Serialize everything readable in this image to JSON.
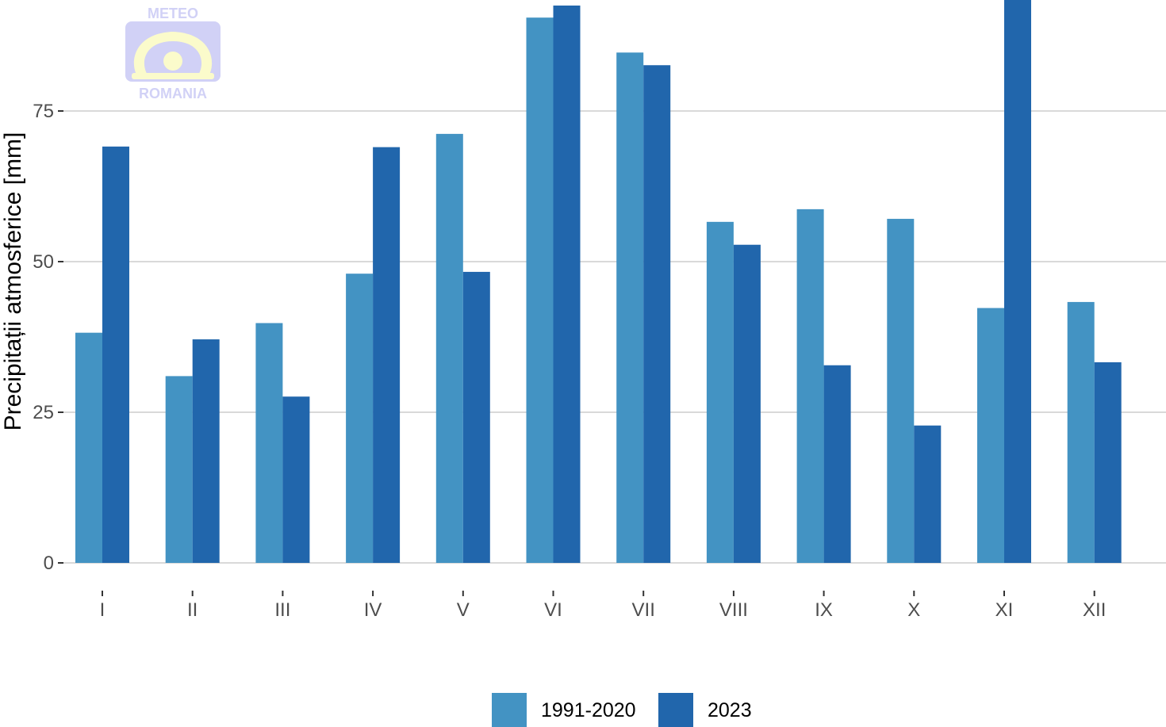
{
  "chart_data": {
    "type": "bar",
    "title": "",
    "xlabel": "",
    "ylabel": "Precipitații atmosferice [mm]",
    "categories": [
      "I",
      "II",
      "III",
      "IV",
      "V",
      "VI",
      "VII",
      "VIII",
      "IX",
      "X",
      "XI",
      "XII"
    ],
    "series": [
      {
        "name": "1991-2020",
        "color": "#4393c3",
        "values": [
          38.2,
          31.0,
          39.8,
          48.0,
          71.2,
          90.5,
          84.7,
          56.6,
          58.7,
          57.1,
          42.3,
          43.3
        ]
      },
      {
        "name": "2023",
        "color": "#2166ac",
        "values": [
          69.1,
          37.1,
          27.6,
          69.0,
          48.3,
          92.5,
          82.6,
          52.8,
          32.8,
          22.8,
          93.5,
          33.3
        ]
      }
    ],
    "yticks": [
      0,
      25,
      50,
      75
    ],
    "ylim": [
      0,
      93.5
    ],
    "grid": true,
    "legend_position": "bottom"
  },
  "logo": {
    "name": "meteo-romania-logo",
    "top_text": "METEO",
    "bottom_text": "ROMANIA"
  }
}
